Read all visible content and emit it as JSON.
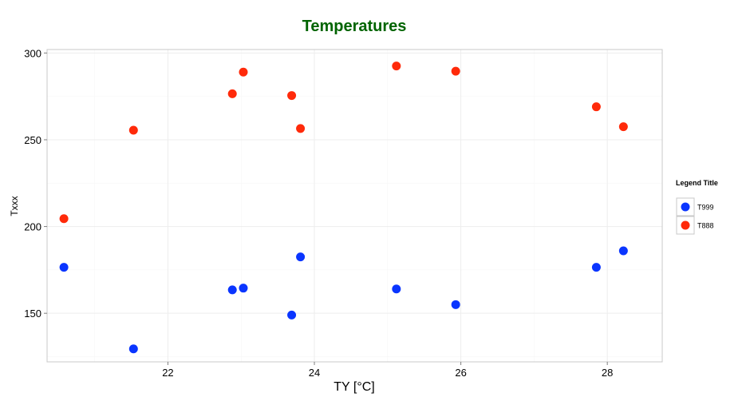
{
  "chart_data": {
    "type": "scatter",
    "title": "Temperatures",
    "title_color": "#006400",
    "xlabel": "TY [°C]",
    "ylabel": "Txxx",
    "xlim": [
      20.35,
      28.75
    ],
    "ylim": [
      122,
      302
    ],
    "x_ticks": [
      22,
      24,
      26,
      28
    ],
    "y_ticks": [
      150,
      200,
      250,
      300
    ],
    "x_tick_labels": [
      "22",
      "24",
      "26",
      "28"
    ],
    "y_tick_labels": [
      "150",
      "200",
      "250",
      "300"
    ],
    "grid": true,
    "legend": {
      "title": "Legend Title",
      "placement": "right"
    },
    "series": [
      {
        "name": "T999",
        "color": "#0A35FF",
        "points": [
          {
            "x": 20.58,
            "y": 176.5
          },
          {
            "x": 21.53,
            "y": 129.5
          },
          {
            "x": 22.88,
            "y": 163.5
          },
          {
            "x": 23.03,
            "y": 164.5
          },
          {
            "x": 23.69,
            "y": 149.0
          },
          {
            "x": 23.81,
            "y": 182.5
          },
          {
            "x": 25.12,
            "y": 164.0
          },
          {
            "x": 25.93,
            "y": 155.0
          },
          {
            "x": 27.85,
            "y": 176.5
          },
          {
            "x": 28.22,
            "y": 186.0
          }
        ]
      },
      {
        "name": "T888",
        "color": "#FF2A0A",
        "points": [
          {
            "x": 20.58,
            "y": 204.5
          },
          {
            "x": 21.53,
            "y": 255.5
          },
          {
            "x": 22.88,
            "y": 276.5
          },
          {
            "x": 23.03,
            "y": 289.0
          },
          {
            "x": 23.69,
            "y": 275.5
          },
          {
            "x": 23.81,
            "y": 256.5
          },
          {
            "x": 25.12,
            "y": 292.5
          },
          {
            "x": 25.93,
            "y": 289.5
          },
          {
            "x": 27.85,
            "y": 269.0
          },
          {
            "x": 28.22,
            "y": 257.5
          }
        ]
      }
    ]
  }
}
